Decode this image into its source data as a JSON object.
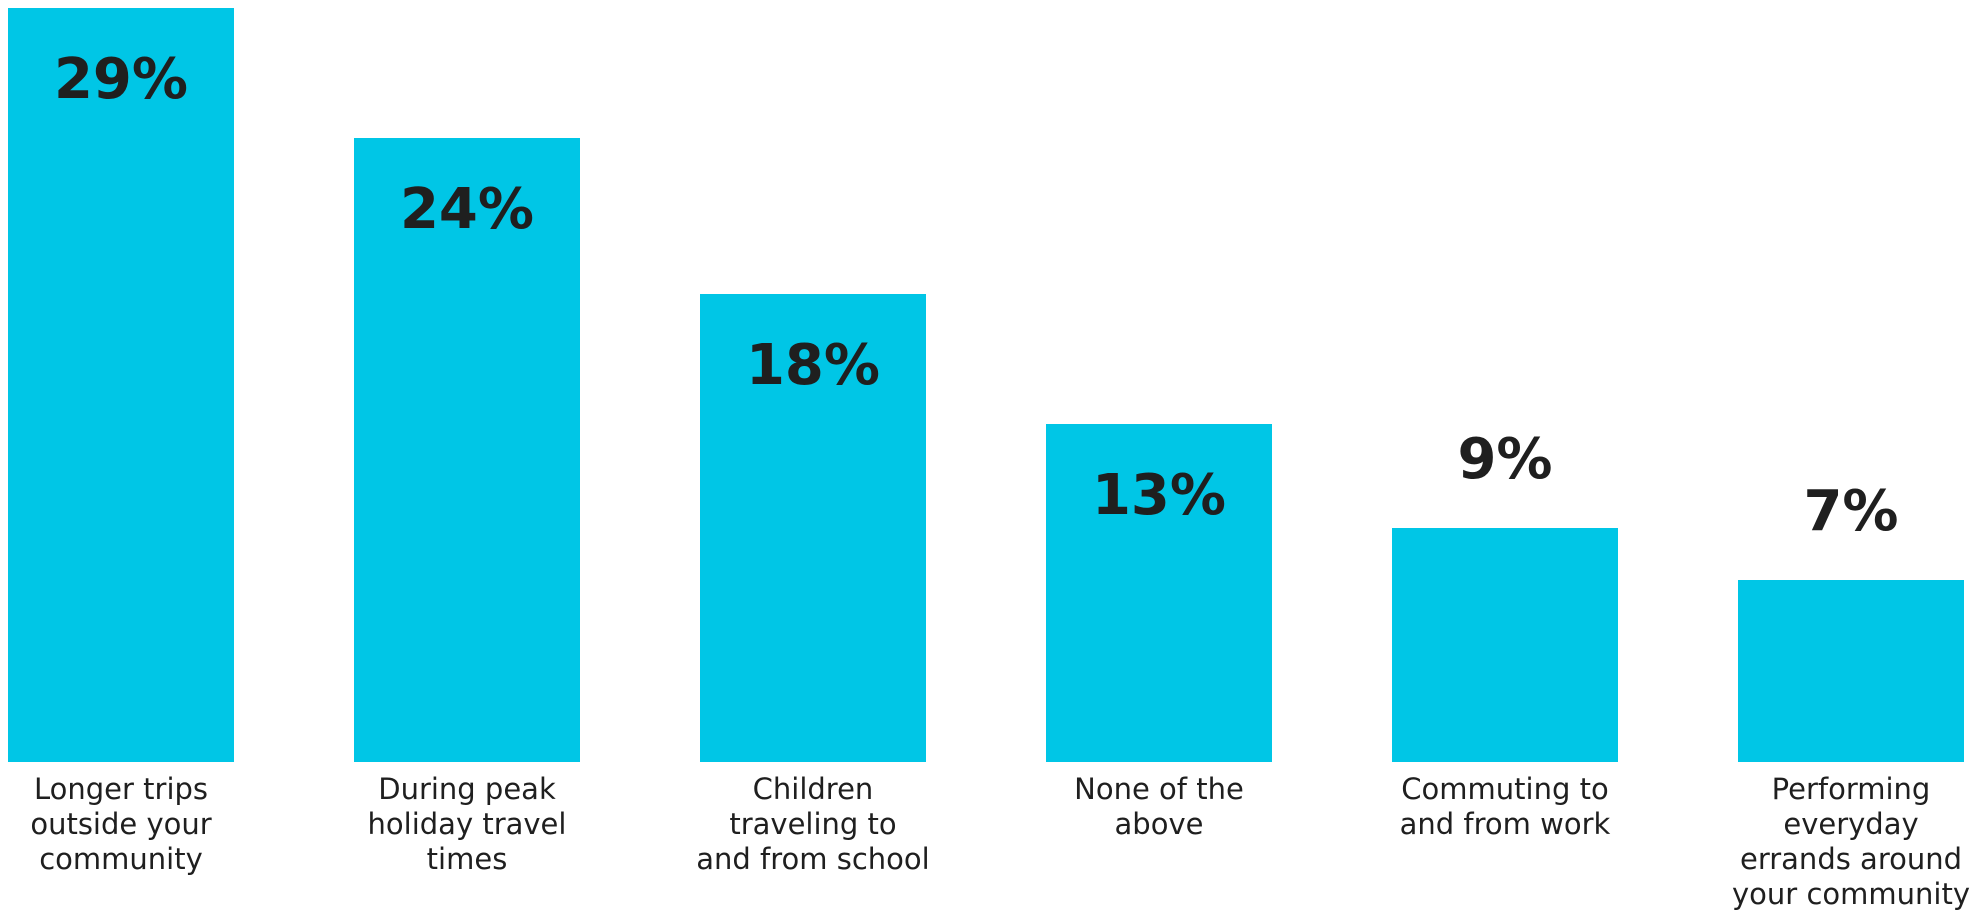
{
  "chart_data": {
    "type": "bar",
    "categories": [
      "Longer trips\noutside your\ncommunity",
      "During peak\nholiday travel\ntimes",
      "Children\ntraveling to\nand from school",
      "None of the\nabove",
      "Commuting to\nand from work",
      "Performing\neveryday\nerrands around\nyour community"
    ],
    "values": [
      29,
      24,
      18,
      13,
      9,
      7
    ],
    "value_labels": [
      "29%",
      "24%",
      "18%",
      "13%",
      "9%",
      "7%"
    ],
    "bar_color": "#00c6e6",
    "label_color": "#1f1f1f",
    "title": "",
    "xlabel": "",
    "ylabel": "",
    "ylim": [
      0,
      29
    ],
    "grid": false,
    "legend": "none"
  }
}
